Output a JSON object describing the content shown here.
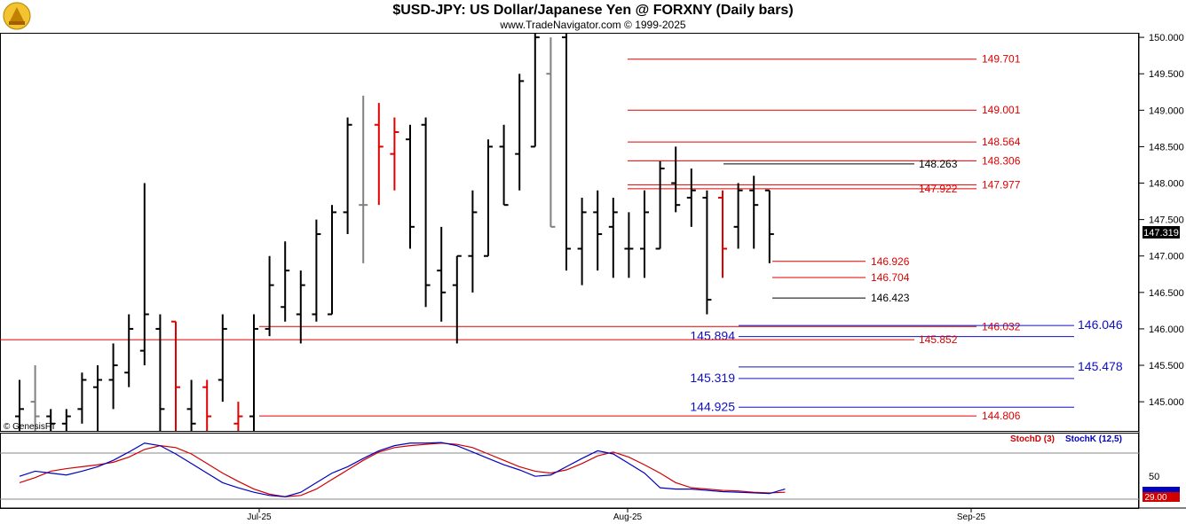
{
  "header": {
    "title": "$USD-JPY:  US Dollar/Japanese Yen @ FORXNY  (Daily bars)",
    "subtitle": "www.TradeNavigator.com © 1999-2025"
  },
  "colors": {
    "black": "#000000",
    "red": "#e00000",
    "gray": "#808080",
    "blue": "#1010c0",
    "stochD": "#d00000",
    "stochK": "#0000c0"
  },
  "chart_data": [
    {
      "type": "ohlc",
      "y_axis": {
        "min": 144.6,
        "max": 150.05,
        "ticks": [
          "150.000",
          "149.500",
          "149.000",
          "148.500",
          "148.000",
          "147.500",
          "147.000",
          "146.500",
          "146.000",
          "145.500",
          "145.000"
        ]
      },
      "x_ticks": [
        "Jul-25",
        "Aug-25",
        "Sep-25"
      ],
      "last_price": "147.319",
      "copyright": "© GenesisFT",
      "bars": [
        {
          "h": 145.3,
          "l": 144.6,
          "o": 144.8,
          "c": 144.9,
          "col": "black"
        },
        {
          "h": 145.5,
          "l": 144.6,
          "o": 145.0,
          "c": 144.8,
          "col": "gray"
        },
        {
          "h": 144.9,
          "l": 144.6,
          "o": 144.8,
          "c": 144.7,
          "col": "black"
        },
        {
          "h": 144.9,
          "l": 144.6,
          "o": 144.7,
          "c": 144.8,
          "col": "black"
        },
        {
          "h": 145.4,
          "l": 144.7,
          "o": 144.9,
          "c": 145.3,
          "col": "black"
        },
        {
          "h": 145.5,
          "l": 144.6,
          "o": 145.2,
          "c": 145.3,
          "col": "black"
        },
        {
          "h": 145.8,
          "l": 144.9,
          "o": 145.3,
          "c": 145.5,
          "col": "black"
        },
        {
          "h": 146.2,
          "l": 145.2,
          "o": 145.4,
          "c": 146.0,
          "col": "black"
        },
        {
          "h": 148.0,
          "l": 145.5,
          "o": 145.7,
          "c": 146.2,
          "col": "black"
        },
        {
          "h": 146.2,
          "l": 144.6,
          "o": 146.0,
          "c": 144.9,
          "col": "black"
        },
        {
          "h": 146.1,
          "l": 144.6,
          "o": 146.1,
          "c": 145.2,
          "col": "red"
        },
        {
          "h": 145.3,
          "l": 144.6,
          "o": 144.9,
          "c": 144.7,
          "col": "black"
        },
        {
          "h": 145.3,
          "l": 144.6,
          "o": 145.2,
          "c": 144.8,
          "col": "red"
        },
        {
          "h": 146.2,
          "l": 145.0,
          "o": 145.3,
          "c": 146.0,
          "col": "black"
        },
        {
          "h": 145.0,
          "l": 144.6,
          "o": 144.7,
          "c": 144.8,
          "col": "red"
        },
        {
          "h": 146.2,
          "l": 144.6,
          "o": 144.8,
          "c": 146.0,
          "col": "black"
        },
        {
          "h": 147.0,
          "l": 145.9,
          "o": 146.0,
          "c": 146.6,
          "col": "black"
        },
        {
          "h": 147.2,
          "l": 146.1,
          "o": 146.3,
          "c": 146.8,
          "col": "black"
        },
        {
          "h": 146.8,
          "l": 145.8,
          "o": 146.2,
          "c": 146.6,
          "col": "black"
        },
        {
          "h": 147.5,
          "l": 146.1,
          "o": 146.2,
          "c": 147.3,
          "col": "black"
        },
        {
          "h": 147.7,
          "l": 146.2,
          "o": 146.2,
          "c": 147.6,
          "col": "black"
        },
        {
          "h": 148.9,
          "l": 147.3,
          "o": 147.6,
          "c": 148.8,
          "col": "black"
        },
        {
          "h": 149.2,
          "l": 146.9,
          "o": 147.7,
          "c": 147.7,
          "col": "gray"
        },
        {
          "h": 149.1,
          "l": 147.7,
          "o": 148.8,
          "c": 148.5,
          "col": "red"
        },
        {
          "h": 148.9,
          "l": 147.9,
          "o": 148.4,
          "c": 148.7,
          "col": "red"
        },
        {
          "h": 148.8,
          "l": 147.1,
          "o": 148.6,
          "c": 147.4,
          "col": "black"
        },
        {
          "h": 148.9,
          "l": 146.3,
          "o": 148.8,
          "c": 146.6,
          "col": "black"
        },
        {
          "h": 147.4,
          "l": 146.1,
          "o": 146.8,
          "c": 146.5,
          "col": "black"
        },
        {
          "h": 147.0,
          "l": 145.8,
          "o": 146.6,
          "c": 147.0,
          "col": "black"
        },
        {
          "h": 147.9,
          "l": 146.5,
          "o": 147.0,
          "c": 147.6,
          "col": "black"
        },
        {
          "h": 148.6,
          "l": 147.0,
          "o": 147.0,
          "c": 148.5,
          "col": "black"
        },
        {
          "h": 148.8,
          "l": 147.7,
          "o": 148.5,
          "c": 147.7,
          "col": "black"
        },
        {
          "h": 149.5,
          "l": 147.9,
          "o": 148.4,
          "c": 149.4,
          "col": "black"
        },
        {
          "h": 150.05,
          "l": 148.5,
          "o": 148.5,
          "c": 150.0,
          "col": "black"
        },
        {
          "h": 150.0,
          "l": 147.4,
          "o": 149.5,
          "c": 147.4,
          "col": "gray"
        },
        {
          "h": 150.05,
          "l": 146.8,
          "o": 150.0,
          "c": 147.1,
          "col": "black"
        },
        {
          "h": 147.8,
          "l": 146.6,
          "o": 147.1,
          "c": 147.6,
          "col": "black"
        },
        {
          "h": 147.9,
          "l": 146.8,
          "o": 147.6,
          "c": 147.3,
          "col": "black"
        },
        {
          "h": 147.8,
          "l": 146.7,
          "o": 147.4,
          "c": 147.6,
          "col": "black"
        },
        {
          "h": 147.6,
          "l": 146.7,
          "o": 147.1,
          "c": 147.1,
          "col": "black"
        },
        {
          "h": 147.9,
          "l": 146.7,
          "o": 147.1,
          "c": 147.6,
          "col": "black"
        },
        {
          "h": 148.3,
          "l": 147.1,
          "o": 147.1,
          "c": 148.2,
          "col": "black"
        },
        {
          "h": 148.5,
          "l": 147.6,
          "o": 148.0,
          "c": 147.7,
          "col": "black"
        },
        {
          "h": 148.2,
          "l": 147.4,
          "o": 147.8,
          "c": 147.9,
          "col": "black"
        },
        {
          "h": 147.9,
          "l": 146.2,
          "o": 147.8,
          "c": 146.4,
          "col": "black"
        },
        {
          "h": 147.9,
          "l": 146.7,
          "o": 147.8,
          "c": 147.1,
          "col": "red"
        },
        {
          "h": 148.0,
          "l": 147.1,
          "o": 147.4,
          "c": 147.9,
          "col": "black"
        },
        {
          "h": 148.1,
          "l": 147.1,
          "o": 147.9,
          "c": 147.7,
          "col": "black"
        },
        {
          "h": 147.9,
          "l": 146.9,
          "o": 147.9,
          "c": 147.3,
          "col": "black"
        }
      ],
      "levels": [
        {
          "label": "149.701",
          "value": 149.701,
          "color": "red",
          "label_side": "right"
        },
        {
          "label": "149.001",
          "value": 149.001,
          "color": "red",
          "label_side": "right"
        },
        {
          "label": "148.564",
          "value": 148.564,
          "color": "red",
          "label_side": "right"
        },
        {
          "label": "148.306",
          "value": 148.306,
          "color": "red",
          "label_side": "right"
        },
        {
          "label": "148.263",
          "value": 148.263,
          "color": "black",
          "label_side": "right"
        },
        {
          "label": "147.977",
          "value": 147.977,
          "color": "red",
          "label_side": "right"
        },
        {
          "label": "147.922",
          "value": 147.922,
          "color": "red",
          "label_side": "right"
        },
        {
          "label": "146.926",
          "value": 146.926,
          "color": "red",
          "label_side": "right"
        },
        {
          "label": "146.704",
          "value": 146.704,
          "color": "red",
          "label_side": "right"
        },
        {
          "label": "146.423",
          "value": 146.423,
          "color": "black",
          "label_side": "right"
        },
        {
          "label": "146.032",
          "value": 146.032,
          "color": "red",
          "label_side": "right"
        },
        {
          "label": "146.046",
          "value": 146.046,
          "color": "blue",
          "label_side": "far"
        },
        {
          "label": "145.894",
          "value": 145.894,
          "color": "blue",
          "label_side": "left"
        },
        {
          "label": "145.852",
          "value": 145.852,
          "color": "red",
          "label_side": "right"
        },
        {
          "label": "145.478",
          "value": 145.478,
          "color": "blue",
          "label_side": "far"
        },
        {
          "label": "145.319",
          "value": 145.319,
          "color": "blue",
          "label_side": "left"
        },
        {
          "label": "144.925",
          "value": 144.925,
          "color": "blue",
          "label_side": "left"
        },
        {
          "label": "144.806",
          "value": 144.806,
          "color": "red",
          "label_side": "right"
        }
      ]
    },
    {
      "type": "line",
      "legend": [
        "StochD (3)",
        "StochK (12,5)"
      ],
      "y_min": 0,
      "y_max": 100,
      "tick_label": "50",
      "last_value": "29.00",
      "series": [
        {
          "name": "StochD (3)",
          "color": "stochD",
          "values": [
            30,
            38,
            48,
            52,
            55,
            58,
            62,
            70,
            82,
            88,
            85,
            75,
            60,
            45,
            32,
            20,
            12,
            8,
            10,
            20,
            35,
            50,
            65,
            78,
            85,
            88,
            90,
            92,
            90,
            85,
            75,
            65,
            55,
            48,
            45,
            50,
            60,
            72,
            78,
            70,
            58,
            45,
            30,
            22,
            20,
            18,
            17,
            15,
            14,
            15
          ]
        },
        {
          "name": "StochK (12,5)",
          "color": "stochK",
          "values": [
            40,
            48,
            45,
            42,
            48,
            55,
            65,
            78,
            92,
            88,
            75,
            60,
            45,
            30,
            22,
            15,
            10,
            8,
            15,
            30,
            45,
            55,
            68,
            80,
            88,
            92,
            92,
            93,
            88,
            78,
            68,
            58,
            50,
            40,
            42,
            55,
            68,
            80,
            75,
            60,
            45,
            22,
            20,
            20,
            18,
            16,
            15,
            14,
            13,
            20
          ]
        }
      ]
    }
  ]
}
